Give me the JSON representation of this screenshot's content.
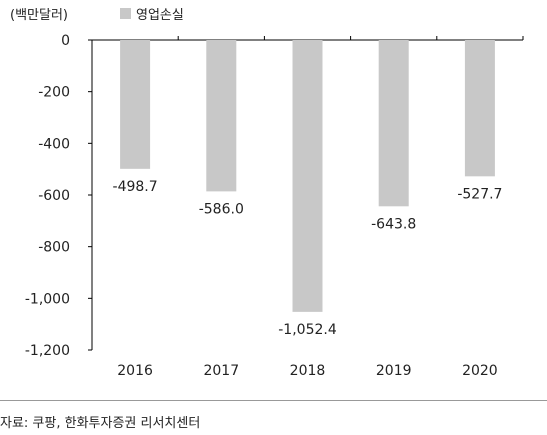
{
  "unit_label": "(백만달러)",
  "legend_label": "영업손실",
  "source": "자료: 쿠팡, 한화투자증권 리서치센터",
  "colors": {
    "bar": "#c8c8c8",
    "axis": "#000000"
  },
  "chart_data": {
    "type": "bar",
    "categories": [
      "2016",
      "2017",
      "2018",
      "2019",
      "2020"
    ],
    "series": [
      {
        "name": "영업손실",
        "values": [
          -498.7,
          -586.0,
          -1052.4,
          -643.8,
          -527.7
        ]
      }
    ],
    "data_labels": [
      "-498.7",
      "-586.0",
      "-1,052.4",
      "-643.8",
      "-527.7"
    ],
    "yticks": [
      "0",
      "-200",
      "-400",
      "-600",
      "-800",
      "-1,000",
      "-1,200"
    ],
    "ytick_values": [
      0,
      -200,
      -400,
      -600,
      -800,
      -1000,
      -1200
    ],
    "ylim": [
      -1200,
      0
    ],
    "ylabel": "(백만달러)",
    "legend": "top-left",
    "grid": false
  }
}
